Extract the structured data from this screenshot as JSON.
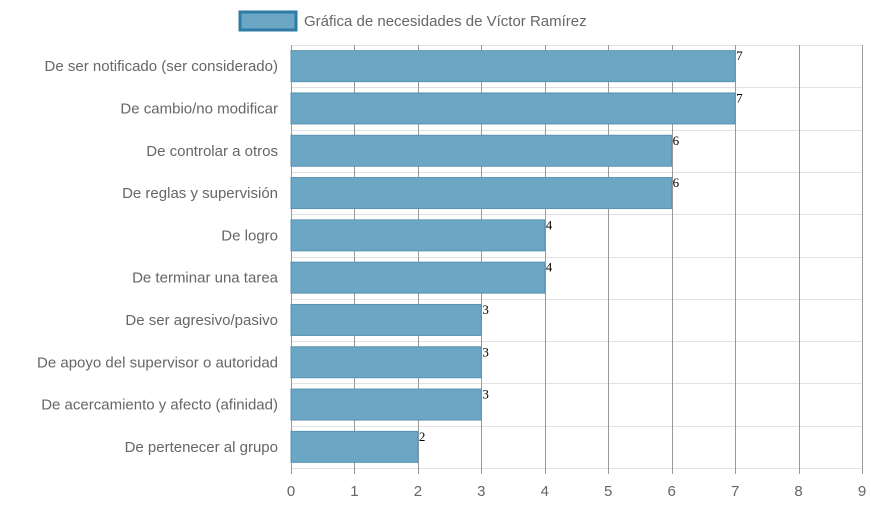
{
  "chart_data": {
    "type": "bar",
    "orientation": "horizontal",
    "legend": {
      "label": "Gráfica de necesidades de Víctor Ramírez",
      "position": "top"
    },
    "categories": [
      "De ser notificado (ser considerado)",
      "De cambio/no modificar",
      "De controlar a otros",
      "De reglas y supervisión",
      "De logro",
      "De terminar una tarea",
      "De ser agresivo/pasivo",
      "De apoyo del supervisor o autoridad",
      "De acercamiento y afecto (afinidad)",
      "De pertenecer al grupo"
    ],
    "values": [
      7,
      7,
      6,
      6,
      4,
      4,
      3,
      3,
      3,
      2
    ],
    "xlim": [
      0,
      9
    ],
    "xticks": [
      "0",
      "1",
      "2",
      "3",
      "4",
      "5",
      "6",
      "7",
      "8",
      "9"
    ],
    "grid": true,
    "colors": {
      "bar_fill": "#6ba6c4",
      "bar_stroke": "#5a93b1",
      "legend_fill": "#6ba6c4",
      "legend_stroke": "#2e7ba6",
      "grid_major": "#999999",
      "grid_minor": "#e2e2e2"
    }
  }
}
